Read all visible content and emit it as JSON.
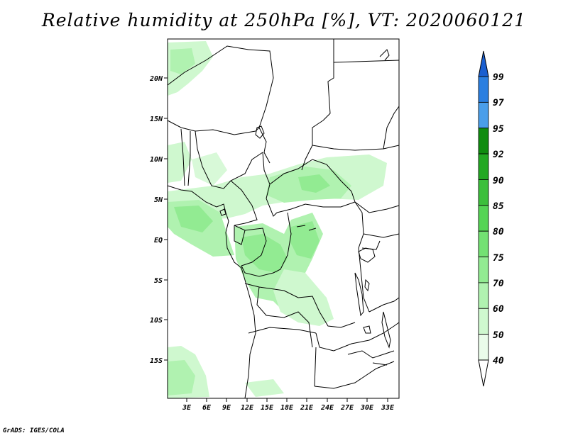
{
  "title": "Relative humidity at 250hPa [%], VT: 2020060121",
  "credit": "GrADS: IGES/COLA",
  "map": {
    "lat_labels": [
      "20N",
      "15N",
      "10N",
      "5N",
      "EQ",
      "5S",
      "10S",
      "15S"
    ],
    "lon_labels": [
      "3E",
      "6E",
      "9E",
      "12E",
      "15E",
      "18E",
      "21E",
      "24E",
      "27E",
      "30E",
      "33E"
    ]
  },
  "colorbar": {
    "labels": [
      "99",
      "97",
      "95",
      "92",
      "90",
      "85",
      "80",
      "75",
      "70",
      "60",
      "50",
      "40"
    ],
    "colors": [
      "#1a5fd0",
      "#2b7fe0",
      "#4a9eea",
      "#0f8c0f",
      "#22a822",
      "#3cbf3c",
      "#55d455",
      "#73e173",
      "#92eb92",
      "#b0f2b0",
      "#cff8cf",
      "#eafcea"
    ]
  },
  "colors": {
    "land_outline": "#000000",
    "accent_green": "#92eb92"
  }
}
